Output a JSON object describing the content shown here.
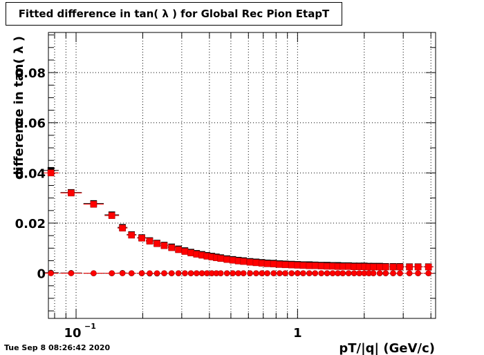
{
  "timestamp": "Tue Sep  8 08:26:42 2020",
  "chart_data": {
    "type": "scatter",
    "title": "Fitted difference in tan( λ ) for Global Rec Pion EtapT",
    "xlabel": "pT/|q| (GeV/c)",
    "ylabel": "difference in tan( λ )",
    "x_scale": "log",
    "xlim": [
      0.075,
      4.2
    ],
    "ylim": [
      -0.018,
      0.096
    ],
    "grid": true,
    "legend": "none",
    "x_tick_labels": [
      {
        "value": 0.1,
        "base": "10",
        "exp": "−1"
      },
      {
        "value": 1,
        "base": "1",
        "exp": ""
      }
    ],
    "y_tick_labels": [
      {
        "value": 0,
        "label": "0"
      },
      {
        "value": 0.02,
        "label": "0.02"
      },
      {
        "value": 0.04,
        "label": "0.04"
      },
      {
        "value": 0.06,
        "label": "0.06"
      },
      {
        "value": 0.08,
        "label": "0.08"
      }
    ],
    "colors": {
      "black_series": "#000000",
      "red_series": "#ff0000",
      "marker_edge": "#b00000"
    },
    "series": [
      {
        "marker": "square",
        "color": "#000000",
        "x": [
          0.077,
          0.095,
          0.12,
          0.145,
          0.162,
          0.178,
          0.198,
          0.215,
          0.232,
          0.25,
          0.27,
          0.29,
          0.31,
          0.33,
          0.35,
          0.37,
          0.39,
          0.41,
          0.43,
          0.45,
          0.48,
          0.51,
          0.54,
          0.57,
          0.61,
          0.65,
          0.69,
          0.73,
          0.78,
          0.83,
          0.88,
          0.94,
          1.0,
          1.06,
          1.13,
          1.2,
          1.28,
          1.36,
          1.44,
          1.52,
          1.6,
          1.7,
          1.8,
          1.9,
          2.0,
          2.1,
          2.2,
          2.35,
          2.5,
          2.7,
          2.9,
          3.2,
          3.5,
          3.9
        ],
        "y": [
          0.041,
          0.0322,
          0.0278,
          0.0233,
          0.0183,
          0.0154,
          0.0142,
          0.013,
          0.012,
          0.0112,
          0.0105,
          0.0097,
          0.009,
          0.0084,
          0.0079,
          0.0075,
          0.0071,
          0.0068,
          0.0065,
          0.0062,
          0.0058,
          0.0055,
          0.0052,
          0.005,
          0.0047,
          0.0045,
          0.0043,
          0.0041,
          0.004,
          0.0038,
          0.0037,
          0.0036,
          0.0035,
          0.0034,
          0.0034,
          0.0033,
          0.0032,
          0.0032,
          0.0031,
          0.0031,
          0.003,
          0.003,
          0.0029,
          0.0029,
          0.0029,
          0.0028,
          0.0028,
          0.0028,
          0.0027,
          0.0027,
          0.0027,
          0.0026,
          0.0026,
          0.0026
        ]
      },
      {
        "marker": "square",
        "color": "#ff0000",
        "x": [
          0.077,
          0.095,
          0.12,
          0.145,
          0.162,
          0.178,
          0.198,
          0.215,
          0.232,
          0.25,
          0.27,
          0.29,
          0.31,
          0.33,
          0.35,
          0.37,
          0.39,
          0.41,
          0.43,
          0.45,
          0.48,
          0.51,
          0.54,
          0.57,
          0.61,
          0.65,
          0.69,
          0.73,
          0.78,
          0.83,
          0.88,
          0.94,
          1.0,
          1.06,
          1.13,
          1.2,
          1.28,
          1.36,
          1.44,
          1.52,
          1.6,
          1.7,
          1.8,
          1.9,
          2.0,
          2.1,
          2.2,
          2.35,
          2.5,
          2.7,
          2.9,
          3.2,
          3.5,
          3.9
        ],
        "y": [
          0.04,
          0.032,
          0.0275,
          0.023,
          0.018,
          0.0152,
          0.014,
          0.0128,
          0.0118,
          0.011,
          0.0102,
          0.0094,
          0.0087,
          0.0081,
          0.0076,
          0.0072,
          0.0068,
          0.0065,
          0.0062,
          0.0059,
          0.0055,
          0.0052,
          0.0049,
          0.0047,
          0.0044,
          0.0042,
          0.004,
          0.0038,
          0.0037,
          0.0035,
          0.0034,
          0.0033,
          0.0032,
          0.0031,
          0.003,
          0.003,
          0.0029,
          0.0028,
          0.0028,
          0.0027,
          0.0027,
          0.0027,
          0.0026,
          0.0026,
          0.0026,
          0.0025,
          0.0025,
          0.0025,
          0.0025,
          0.0025,
          0.0025,
          0.0025,
          0.0025,
          0.0025
        ]
      },
      {
        "marker": "circle",
        "color": "#000000",
        "x": [
          0.077,
          0.095,
          0.12,
          0.145,
          0.162,
          0.178,
          0.198,
          0.215,
          0.232,
          0.25,
          0.27,
          0.29,
          0.31,
          0.33,
          0.35,
          0.37,
          0.39,
          0.41,
          0.43,
          0.45,
          0.48,
          0.51,
          0.54,
          0.57,
          0.61,
          0.65,
          0.69,
          0.73,
          0.78,
          0.83,
          0.88,
          0.94,
          1.0,
          1.06,
          1.13,
          1.2,
          1.28,
          1.36,
          1.44,
          1.52,
          1.6,
          1.7,
          1.8,
          1.9,
          2.0,
          2.1,
          2.2,
          2.35,
          2.5,
          2.7,
          2.9,
          3.2,
          3.5,
          3.9
        ],
        "y": [
          0.0002,
          0.0001,
          0.0,
          0.0,
          0.0001,
          0.0,
          0.0,
          -0.0001,
          -0.0001,
          0.0,
          0.0,
          0.0,
          0.0,
          0.0,
          0.0,
          0.0,
          0.0,
          0.0,
          0.0,
          0.0,
          0.0,
          0.0,
          0.0,
          0.0,
          0.0,
          0.0,
          0.0,
          0.0,
          0.0,
          0.0,
          0.0,
          0.0,
          0.0,
          0.0,
          0.0,
          0.0,
          0.0,
          0.0,
          0.0,
          0.0,
          0.0,
          0.0,
          0.0,
          0.0,
          0.0,
          0.0,
          0.0,
          0.0,
          0.0,
          0.0,
          0.0,
          0.0,
          0.0,
          0.0
        ]
      },
      {
        "marker": "circle",
        "color": "#ff0000",
        "x": [
          0.077,
          0.095,
          0.12,
          0.145,
          0.162,
          0.178,
          0.198,
          0.215,
          0.232,
          0.25,
          0.27,
          0.29,
          0.31,
          0.33,
          0.35,
          0.37,
          0.39,
          0.41,
          0.43,
          0.45,
          0.48,
          0.51,
          0.54,
          0.57,
          0.61,
          0.65,
          0.69,
          0.73,
          0.78,
          0.83,
          0.88,
          0.94,
          1.0,
          1.06,
          1.13,
          1.2,
          1.28,
          1.36,
          1.44,
          1.52,
          1.6,
          1.7,
          1.8,
          1.9,
          2.0,
          2.1,
          2.2,
          2.35,
          2.5,
          2.7,
          2.9,
          3.2,
          3.5,
          3.9
        ],
        "y": [
          0.0,
          0.0,
          0.0,
          0.0,
          0.0,
          0.0,
          0.0,
          0.0,
          0.0,
          0.0,
          0.0,
          0.0,
          0.0,
          0.0,
          0.0,
          0.0,
          0.0,
          0.0,
          0.0,
          0.0,
          0.0,
          0.0,
          0.0,
          0.0,
          0.0,
          0.0,
          0.0,
          0.0,
          0.0,
          0.0,
          0.0,
          0.0,
          0.0,
          0.0,
          0.0,
          0.0,
          0.0,
          0.0,
          0.0,
          0.0,
          0.0,
          0.0,
          0.0,
          0.0,
          0.0,
          0.0,
          0.0,
          0.0,
          0.0,
          0.0,
          0.0,
          0.0,
          0.0,
          0.0
        ]
      }
    ]
  }
}
